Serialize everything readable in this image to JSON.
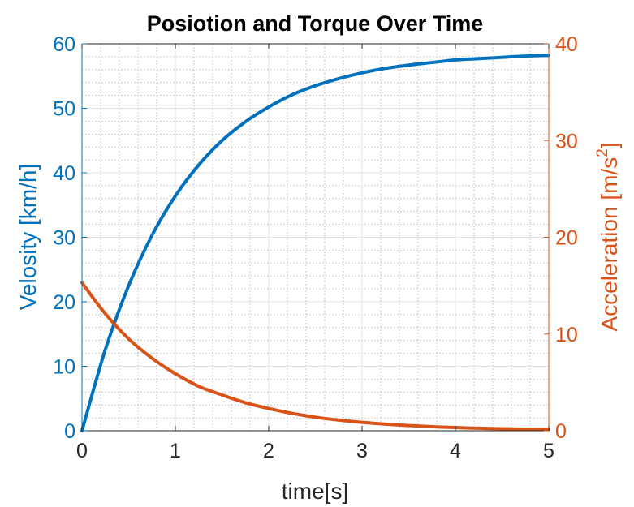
{
  "chart_data": {
    "type": "line",
    "title": "Posiotion and Torque Over Time",
    "xlabel": "time[s]",
    "ylabel_left": "Velosity [km/h]",
    "ylabel_right": {
      "text": "Acceleration [m/s",
      "superscript": "2",
      "suffix": "]"
    },
    "xlim": [
      0,
      5
    ],
    "ylim_left": [
      0,
      60
    ],
    "ylim_right": [
      0,
      40
    ],
    "xticks": [
      "0",
      "1",
      "2",
      "3",
      "4",
      "5"
    ],
    "yticks_left": [
      "0",
      "10",
      "20",
      "30",
      "40",
      "50",
      "60"
    ],
    "yticks_right": [
      "0",
      "10",
      "20",
      "30",
      "40"
    ],
    "grid": true,
    "minor_grid": true,
    "series": [
      {
        "axis": "left",
        "color": "#0072BD",
        "x": [
          0,
          0.25,
          0.5,
          0.75,
          1.0,
          1.25,
          1.5,
          1.75,
          2.0,
          2.25,
          2.5,
          2.75,
          3.0,
          3.25,
          3.5,
          3.75,
          4.0,
          4.25,
          4.5,
          4.75,
          5.0
        ],
        "values": [
          0,
          12.6,
          22.5,
          30.3,
          36.4,
          41.2,
          45.0,
          47.9,
          50.2,
          52.1,
          53.5,
          54.6,
          55.5,
          56.2,
          56.7,
          57.1,
          57.5,
          57.7,
          57.9,
          58.1,
          58.2
        ]
      },
      {
        "axis": "right",
        "color": "#D95319",
        "x": [
          0,
          0.25,
          0.5,
          0.75,
          1.0,
          1.25,
          1.5,
          1.75,
          2.0,
          2.25,
          2.5,
          2.75,
          3.0,
          3.25,
          3.5,
          3.75,
          4.0,
          4.25,
          4.5,
          4.75,
          5.0
        ],
        "values": [
          15.3,
          12.1,
          9.5,
          7.5,
          5.9,
          4.6,
          3.7,
          2.9,
          2.3,
          1.8,
          1.4,
          1.1,
          0.87,
          0.68,
          0.54,
          0.42,
          0.33,
          0.26,
          0.21,
          0.16,
          0.13
        ]
      }
    ]
  },
  "colors": {
    "left_axis": "#0072BD",
    "right_axis": "#D95319",
    "bottom_axis": "#262626",
    "grid": "#b0b0b0"
  }
}
